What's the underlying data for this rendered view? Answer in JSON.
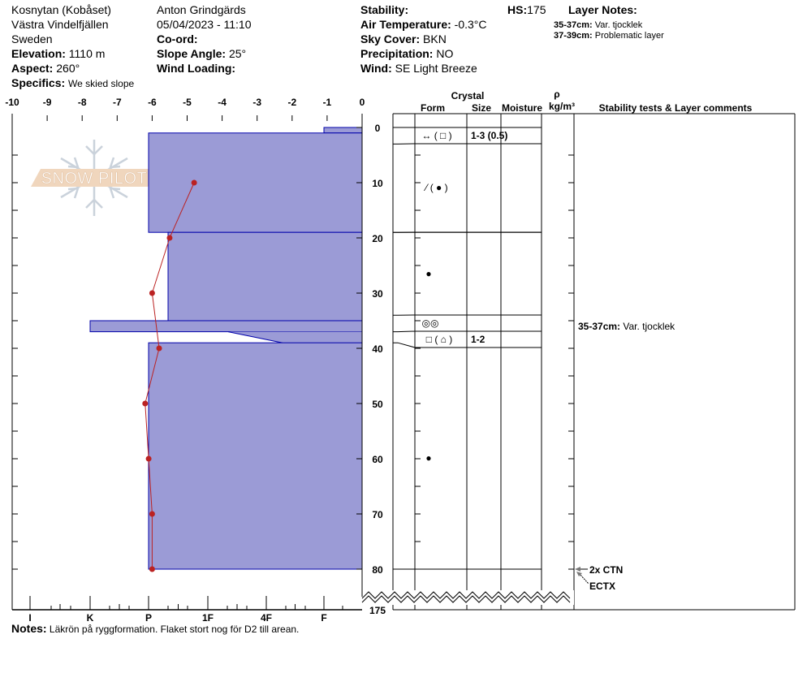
{
  "header": {
    "location": "Kosnytan (Kobåset)",
    "range": "Västra Vindelfjällen",
    "country": "Sweden",
    "elevation_label": "Elevation:",
    "elevation": "1110 m",
    "aspect_label": "Aspect:",
    "aspect": "260°",
    "specifics_label": "Specifics:",
    "specifics": "We skied slope",
    "observer": "Anton Grindgärds",
    "datetime": "05/04/2023 - 11:10",
    "coord_label": "Co-ord:",
    "slope_label": "Slope Angle:",
    "slope": "25°",
    "wind_loading_label": "Wind Loading:",
    "stability_label": "Stability:",
    "air_temp_label": "Air Temperature:",
    "air_temp": "-0.3°C",
    "sky_label": "Sky Cover:",
    "sky": "BKN",
    "precip_label": "Precipitation:",
    "precip": "NO",
    "wind_label": "Wind:",
    "wind": "SE  Light Breeze",
    "hs_label": "HS:",
    "hs": "175",
    "layer_notes_label": "Layer Notes:",
    "layer_notes": [
      {
        "range": "35-37cm:",
        "text": "Var. tjocklek"
      },
      {
        "range": "37-39cm:",
        "text": "Problematic layer"
      }
    ]
  },
  "table_headers": {
    "crystal": "Crystal",
    "form": "Form",
    "size": "Size",
    "moisture": "Moisture",
    "rho": "ρ",
    "density_unit": "kg/m³",
    "comments": "Stability tests & Layer comments"
  },
  "notes_label": "Notes:",
  "notes": "Läkrön på ryggformation. Flaket stort nog för D2 till arean.",
  "logo_text": "SNOW PILOT",
  "colors": {
    "layer_fill": "#9b9bd6",
    "layer_stroke": "#0000aa",
    "temp_line": "#bb2222"
  },
  "chart_data": {
    "type": "snow-profile",
    "temp_axis": {
      "ticks": [
        "-10",
        "-9",
        "-8",
        "-7",
        "-6",
        "-5",
        "-4",
        "-3",
        "-2",
        "-1",
        "0"
      ],
      "range": [
        -10,
        0
      ]
    },
    "depth_axis": {
      "ticks": [
        "0",
        "10",
        "20",
        "30",
        "40",
        "50",
        "60",
        "70",
        "80"
      ],
      "range": [
        0,
        80
      ],
      "bottom_label": "175"
    },
    "hardness_axis": {
      "ticks": [
        "I",
        "K",
        "P",
        "1F",
        "4F",
        "F"
      ]
    },
    "hardness_layers": [
      {
        "top": 0,
        "bottom": 1,
        "hardness": "F"
      },
      {
        "top": 1,
        "bottom": 19,
        "hardness": "P"
      },
      {
        "top": 19,
        "bottom": 35,
        "hardness": "P-"
      },
      {
        "top": 35,
        "bottom": 37,
        "hardness": "K"
      },
      {
        "top": 37,
        "bottom": 39,
        "hardness_top": "4F+",
        "hardness_bottom": "4F-"
      },
      {
        "top": 39,
        "bottom": 80,
        "hardness": "P"
      }
    ],
    "temperature": [
      {
        "depth": 10,
        "temp": -4.8
      },
      {
        "depth": 20,
        "temp": -5.5
      },
      {
        "depth": 30,
        "temp": -6.0
      },
      {
        "depth": 40,
        "temp": -5.8
      },
      {
        "depth": 50,
        "temp": -6.2
      },
      {
        "depth": 60,
        "temp": -6.1
      },
      {
        "depth": 70,
        "temp": -6.0
      },
      {
        "depth": 80,
        "temp": -6.0
      }
    ],
    "layers": [
      {
        "depth": "0-3",
        "form": "↔ ( □ )",
        "size": "1-3 (0.5)"
      },
      {
        "depth": "3-19",
        "form": "⁄ ( ● )",
        "size": ""
      },
      {
        "depth": "19-34",
        "form": "●",
        "size": ""
      },
      {
        "depth": "34-37",
        "form": "◎◎",
        "size": ""
      },
      {
        "depth": "37-39",
        "form": "□ ( ⌂ )",
        "size": "1-2"
      },
      {
        "depth": "39-80",
        "form": "●",
        "size": ""
      }
    ],
    "comments": [
      {
        "depth": 36,
        "text": "35-37cm:",
        "detail": "Var. tjocklek"
      }
    ],
    "stability_tests": [
      {
        "depth": 80,
        "text": "2x CTN"
      },
      {
        "depth": 80,
        "text": "ECTX"
      }
    ]
  }
}
